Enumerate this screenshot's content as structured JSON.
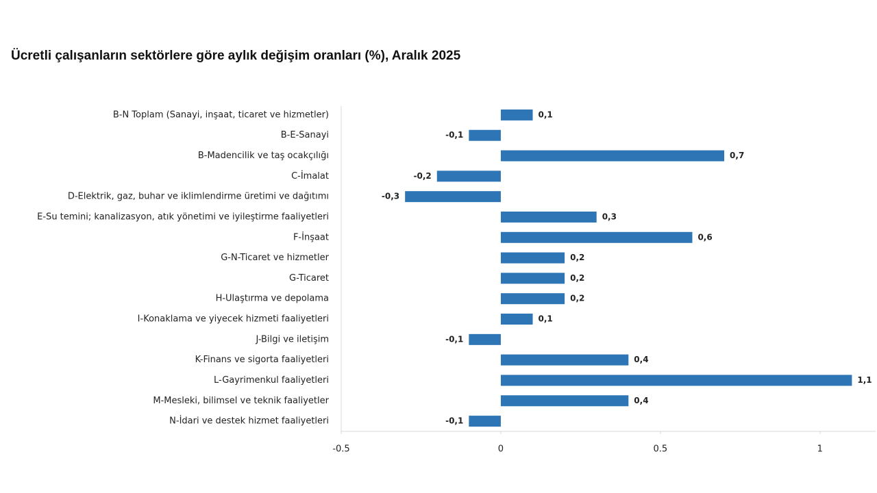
{
  "chart_data": {
    "type": "bar",
    "orientation": "horizontal",
    "title": "Ücretli çalışanların sektörlere göre aylık değişim oranları (%), Aralık 2025",
    "categories": [
      "B-N Toplam (Sanayi, inşaat, ticaret ve hizmetler)",
      "B-E-Sanayi",
      "B-Madencilik ve taş ocakçılığı",
      "C-İmalat",
      "D-Elektrik, gaz, buhar ve iklimlendirme üretimi ve dağıtımı",
      "E-Su temini; kanalizasyon, atık yönetimi ve iyileştirme faaliyetleri",
      "F-İnşaat",
      "G-N-Ticaret ve hizmetler",
      "G-Ticaret",
      "H-Ulaştırma ve depolama",
      "I-Konaklama ve yiyecek hizmeti faaliyetleri",
      "J-Bilgi ve iletişim",
      "K-Finans ve sigorta faaliyetleri",
      "L-Gayrimenkul faaliyetleri",
      "M-Mesleki, bilimsel ve teknik faaliyetler",
      "N-İdari ve destek hizmet faaliyetleri"
    ],
    "values": [
      0.1,
      -0.1,
      0.7,
      -0.2,
      -0.3,
      0.3,
      0.6,
      0.2,
      0.2,
      0.2,
      0.1,
      -0.1,
      0.4,
      1.1,
      0.4,
      -0.1
    ],
    "value_labels": [
      "0,1",
      "-0,1",
      "0,7",
      "-0,2",
      "-0,3",
      "0,3",
      "0,6",
      "0,2",
      "0,2",
      "0,2",
      "0,1",
      "-0,1",
      "0,4",
      "1,1",
      "0,4",
      "-0,1"
    ],
    "color": "#2e75b6",
    "xlim": [
      -0.5,
      1.17
    ],
    "xticks": [
      -0.5,
      0,
      0.5,
      1
    ],
    "grid": false
  }
}
